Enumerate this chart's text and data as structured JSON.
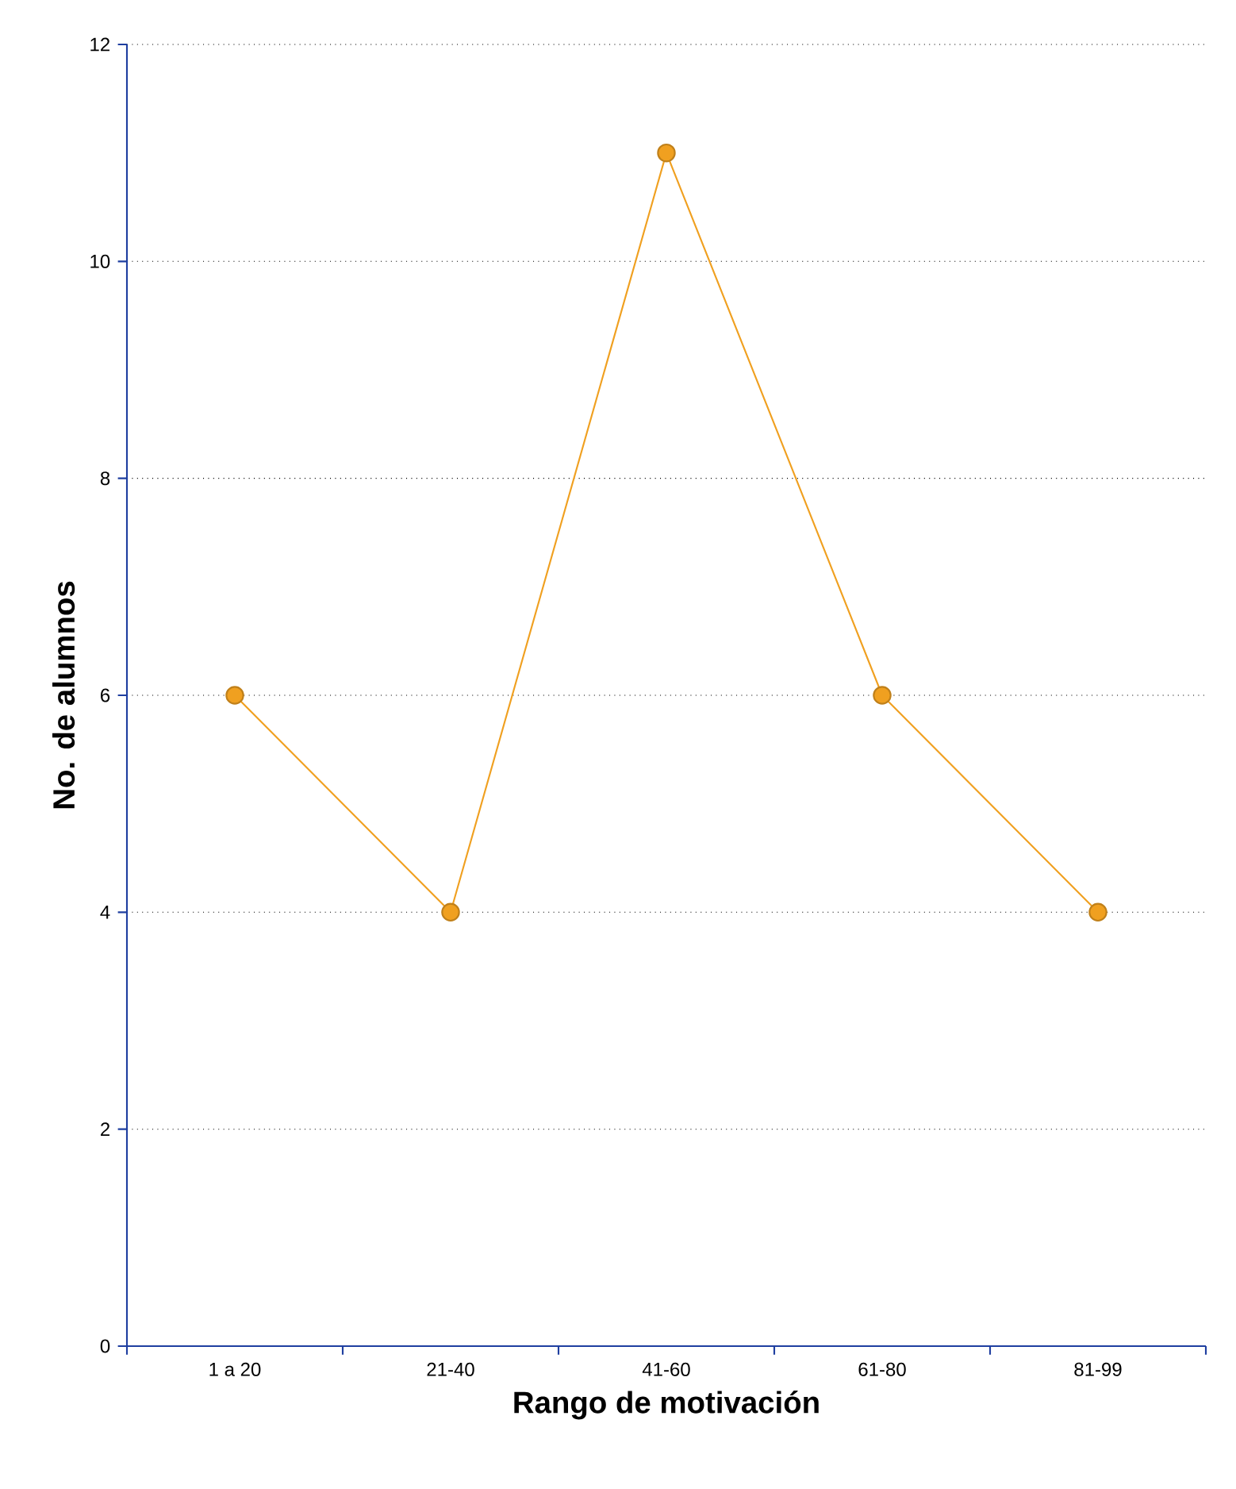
{
  "chart_data": {
    "type": "line",
    "xlabel": "Rango de motivación",
    "ylabel": "No. de alumnos",
    "categories": [
      "1 a 20",
      "21-40",
      "41-60",
      "61-80",
      "81-99"
    ],
    "values": [
      6,
      4,
      11,
      6,
      4
    ],
    "color": "#f0a020",
    "ylim": [
      0,
      12
    ],
    "yticks": [
      0,
      2,
      4,
      6,
      8,
      10,
      12
    ],
    "grid": "y",
    "marker": "circle",
    "line_style": "solid"
  }
}
